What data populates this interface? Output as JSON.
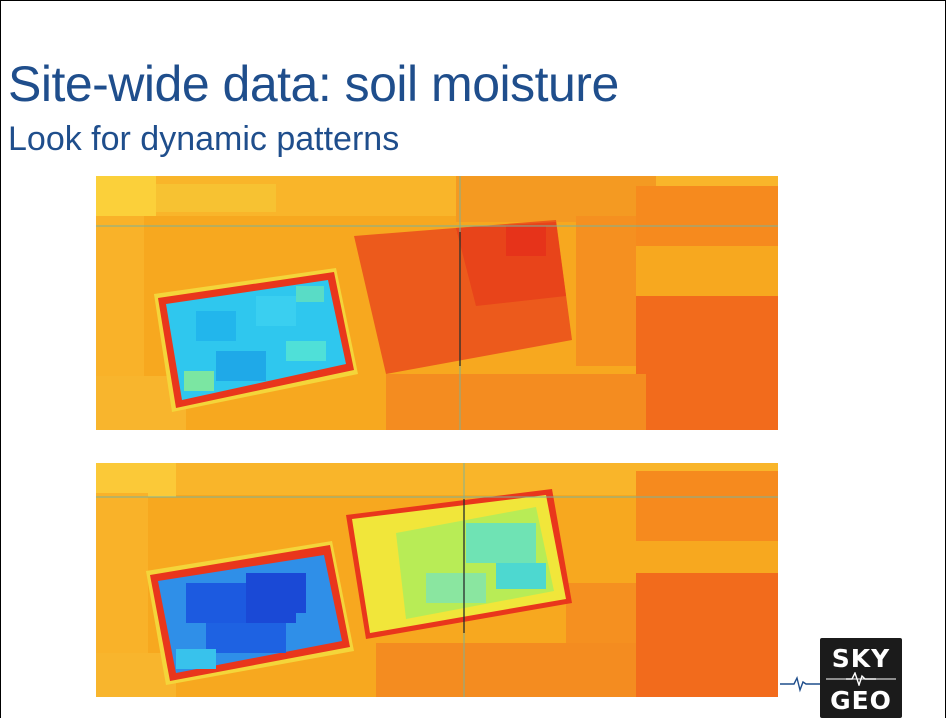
{
  "slide": {
    "title": "Site-wide data: soil moisture",
    "subtitle": "Look for dynamic patterns"
  },
  "images": [
    {
      "name": "soil-moisture-map-earlier"
    },
    {
      "name": "soil-moisture-map-later"
    }
  ],
  "logo": {
    "line1": "SKY",
    "line2": "GEO",
    "icon": "waveform-icon"
  },
  "colors": {
    "title": "#1f4e8c",
    "dry": "#f5a623",
    "very_dry": "#ee3a1a",
    "wet": "#29c4f0",
    "very_wet": "#1c56e0",
    "logo_bg": "#1b1b1b"
  }
}
